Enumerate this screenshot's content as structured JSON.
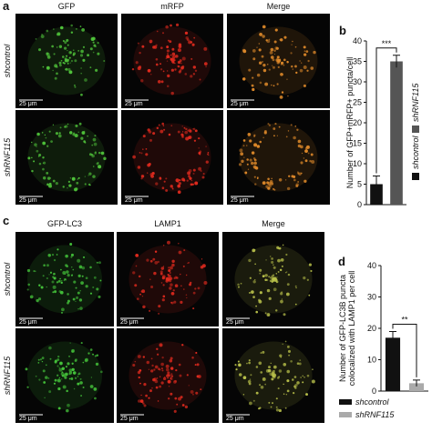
{
  "figure": {
    "panel_labels": [
      "a",
      "b",
      "c",
      "d"
    ],
    "panel_a": {
      "columns": [
        "GFP",
        "mRFP",
        "Merge"
      ],
      "rows": [
        "shcontrol",
        "shRNF115"
      ],
      "scale_bar": "25 μm"
    },
    "panel_c": {
      "columns": [
        "GFP-LC3",
        "LAMP1",
        "Merge"
      ],
      "rows": [
        "shcontrol",
        "shRNF115"
      ],
      "scale_bar": "25 μm"
    }
  },
  "chart_data": [
    {
      "type": "bar",
      "y_label": [
        "Number of GFP+mRFP+ puncta/cell"
      ],
      "ylim": [
        0,
        40
      ],
      "yticks": [
        0,
        5,
        10,
        15,
        20,
        25,
        30,
        35,
        40
      ],
      "annotation": "***",
      "legend": "right",
      "series": [
        {
          "name": "shcontrol",
          "color": "#111111",
          "values": [
            5
          ],
          "errors": [
            2
          ]
        },
        {
          "name": "shRNF115",
          "color": "#555555",
          "values": [
            35
          ],
          "errors": [
            1.5
          ]
        }
      ]
    },
    {
      "type": "bar",
      "y_label": [
        "Number of GFP-LC3B puncta",
        "colocalized with LAMP1 per cell"
      ],
      "ylim": [
        0,
        40
      ],
      "yticks": [
        0,
        10,
        20,
        30,
        40
      ],
      "annotation": "**",
      "legend": "bottom",
      "series": [
        {
          "name": "shcontrol",
          "color": "#111111",
          "values": [
            17
          ],
          "errors": [
            2
          ]
        },
        {
          "name": "shRNF115",
          "color": "#aaaaaa",
          "values": [
            2.5
          ],
          "errors": [
            1
          ]
        }
      ]
    }
  ]
}
